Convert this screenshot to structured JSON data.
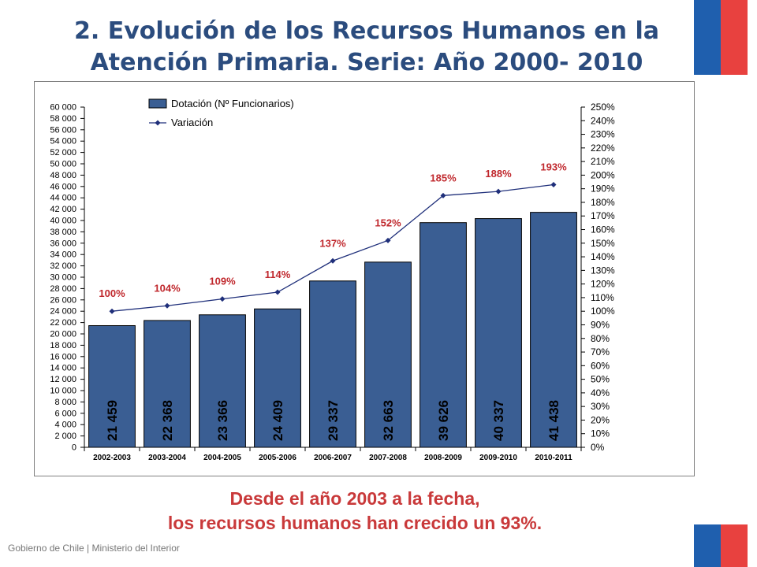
{
  "slide": {
    "title": "2. Evolución de los Recursos Humanos en la Atención Primaria. Serie: Año 2000- 2010",
    "caption_line1": "Desde el año 2003 a la fecha,",
    "caption_line2": "los recursos humanos han crecido un 93%.",
    "footer": "Gobierno de Chile | Ministerio del Interior"
  },
  "colors": {
    "title": "#2b4c7e",
    "bar_fill": "#3a5e93",
    "line": "#1f2f7a",
    "pct_label": "#c0282d",
    "caption": "#c9393a",
    "flag_blue": "#1f5fae",
    "flag_red": "#e8413f"
  },
  "chart_data": {
    "type": "bar",
    "categories": [
      "2002-2003",
      "2003-2004",
      "2004-2005",
      "2005-2006",
      "2006-2007",
      "2007-2008",
      "2008-2009",
      "2009-2010",
      "2010-2011"
    ],
    "series": [
      {
        "name": "Dotación (Nº Funcionarios)",
        "type": "bar",
        "axis": "left",
        "values": [
          21459,
          22368,
          23366,
          24409,
          29337,
          32663,
          39626,
          40337,
          41438
        ],
        "labels": [
          "21 459",
          "22 368",
          "23 366",
          "24 409",
          "29 337",
          "32 663",
          "39 626",
          "40 337",
          "41 438"
        ]
      },
      {
        "name": "Variación",
        "type": "line",
        "axis": "right",
        "values": [
          100,
          104,
          109,
          114,
          137,
          152,
          185,
          188,
          193
        ],
        "labels": [
          "100%",
          "104%",
          "109%",
          "114%",
          "137%",
          "152%",
          "185%",
          "188%",
          "193%"
        ]
      }
    ],
    "y_left": {
      "min": 0,
      "max": 60000,
      "step": 2000,
      "ticks": [
        "0",
        "2 000",
        "4 000",
        "6 000",
        "8 000",
        "10 000",
        "12 000",
        "14 000",
        "16 000",
        "18 000",
        "20 000",
        "22 000",
        "24 000",
        "26 000",
        "28 000",
        "30 000",
        "32 000",
        "34 000",
        "36 000",
        "38 000",
        "40 000",
        "42 000",
        "44 000",
        "46 000",
        "48 000",
        "50 000",
        "52 000",
        "54 000",
        "56 000",
        "58 000",
        "60 000"
      ]
    },
    "y_right": {
      "min": 0,
      "max": 250,
      "step": 10,
      "ticks": [
        "0%",
        "10%",
        "20%",
        "30%",
        "40%",
        "50%",
        "60%",
        "70%",
        "80%",
        "90%",
        "100%",
        "110%",
        "120%",
        "130%",
        "140%",
        "150%",
        "160%",
        "170%",
        "180%",
        "190%",
        "200%",
        "210%",
        "220%",
        "230%",
        "240%",
        "250%"
      ]
    },
    "legend_position": "top-left",
    "grid": false
  }
}
